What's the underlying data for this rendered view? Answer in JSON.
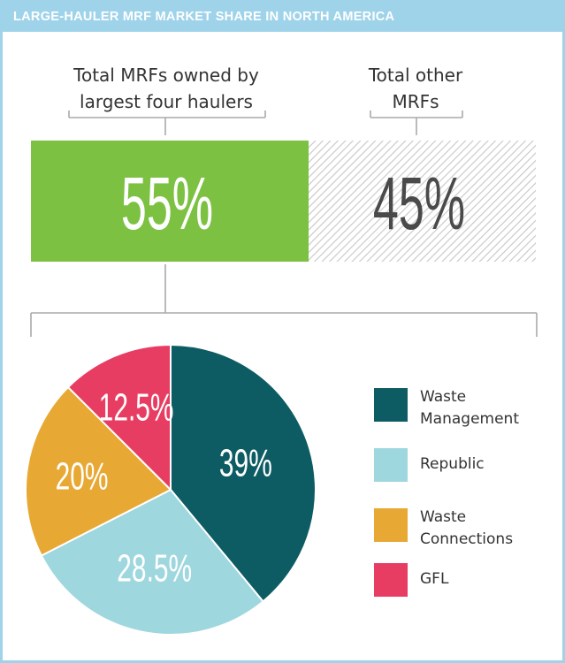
{
  "header": {
    "title": "LARGE-HAULER MRF MARKET SHARE IN NORTH AMERICA"
  },
  "bar": {
    "left_label_line1": "Total MRFs owned by",
    "left_label_line2": "largest four haulers",
    "right_label_line1": "Total other",
    "right_label_line2": "MRFs",
    "left_value_text": "55%",
    "right_value_text": "45%"
  },
  "colors": {
    "header": "#9fd3ea",
    "bar_green": "#7dc143",
    "hatch": "#c7c7c7",
    "bracket": "#aaaaaa",
    "waste_management": "#0e5c63",
    "republic": "#9fd7df",
    "waste_connections": "#e8a834",
    "gfl": "#e83d63"
  },
  "chart_data": [
    {
      "type": "bar",
      "categories": [
        "Total MRFs owned by largest four haulers",
        "Total other MRFs"
      ],
      "values": [
        55,
        45
      ],
      "stacked": true,
      "orientation": "horizontal",
      "value_labels": [
        "55%",
        "45%"
      ]
    },
    {
      "type": "pie",
      "categories": [
        "Waste Management",
        "Republic",
        "Waste Connections",
        "GFL"
      ],
      "values": [
        39,
        28.5,
        20,
        12.5
      ],
      "value_labels": [
        "39%",
        "28.5%",
        "20%",
        "12.5%"
      ],
      "legend_position": "right"
    }
  ],
  "legend": [
    {
      "line1": "Waste",
      "line2": "Management"
    },
    {
      "line1": "Republic",
      "line2": ""
    },
    {
      "line1": "Waste",
      "line2": "Connections"
    },
    {
      "line1": "GFL",
      "line2": ""
    }
  ]
}
